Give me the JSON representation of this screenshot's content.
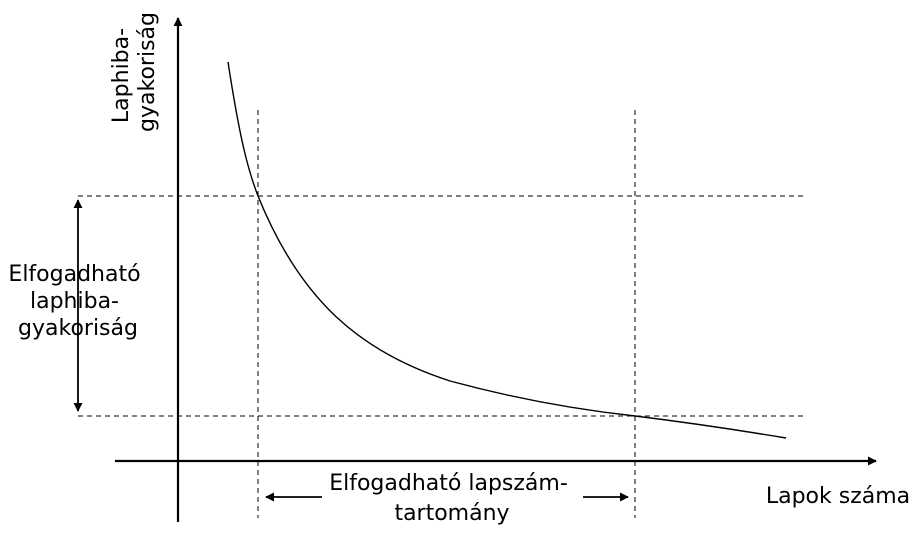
{
  "diagram": {
    "y_axis_label": [
      "Laphiba-",
      "gyakoriság"
    ],
    "x_axis_label": "Lapok száma",
    "acceptable_fault_rate_label": [
      "Elfogadható",
      "laphiba-",
      "gyakoriság"
    ],
    "acceptable_page_range_label": [
      "Elfogadható lapszám-",
      "tartomány"
    ]
  }
}
